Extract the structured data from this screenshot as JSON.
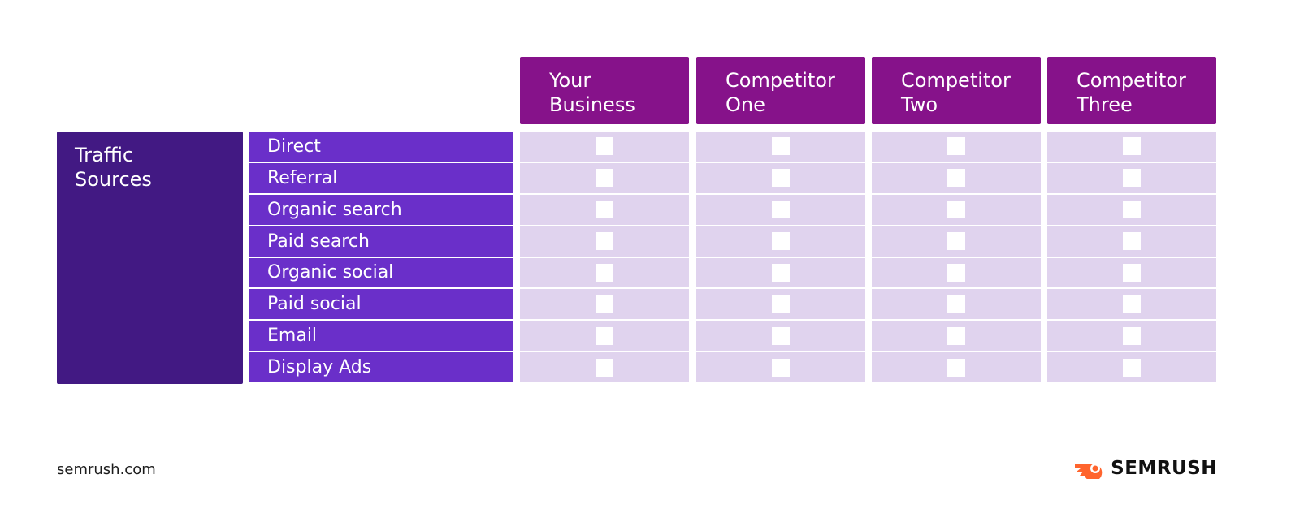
{
  "table": {
    "columns": [
      [
        "Your",
        "Business"
      ],
      [
        "Competitor",
        "One"
      ],
      [
        "Competitor",
        "Two"
      ],
      [
        "Competitor",
        "Three"
      ]
    ],
    "group_label": [
      "Traffic",
      "Sources"
    ],
    "rows": [
      "Direct",
      "Referral",
      "Organic search",
      "Paid search",
      "Organic social",
      "Paid social",
      "Email",
      "Display Ads"
    ]
  },
  "footer": {
    "site": "semrush.com",
    "logo": "SEMRUSH"
  }
}
